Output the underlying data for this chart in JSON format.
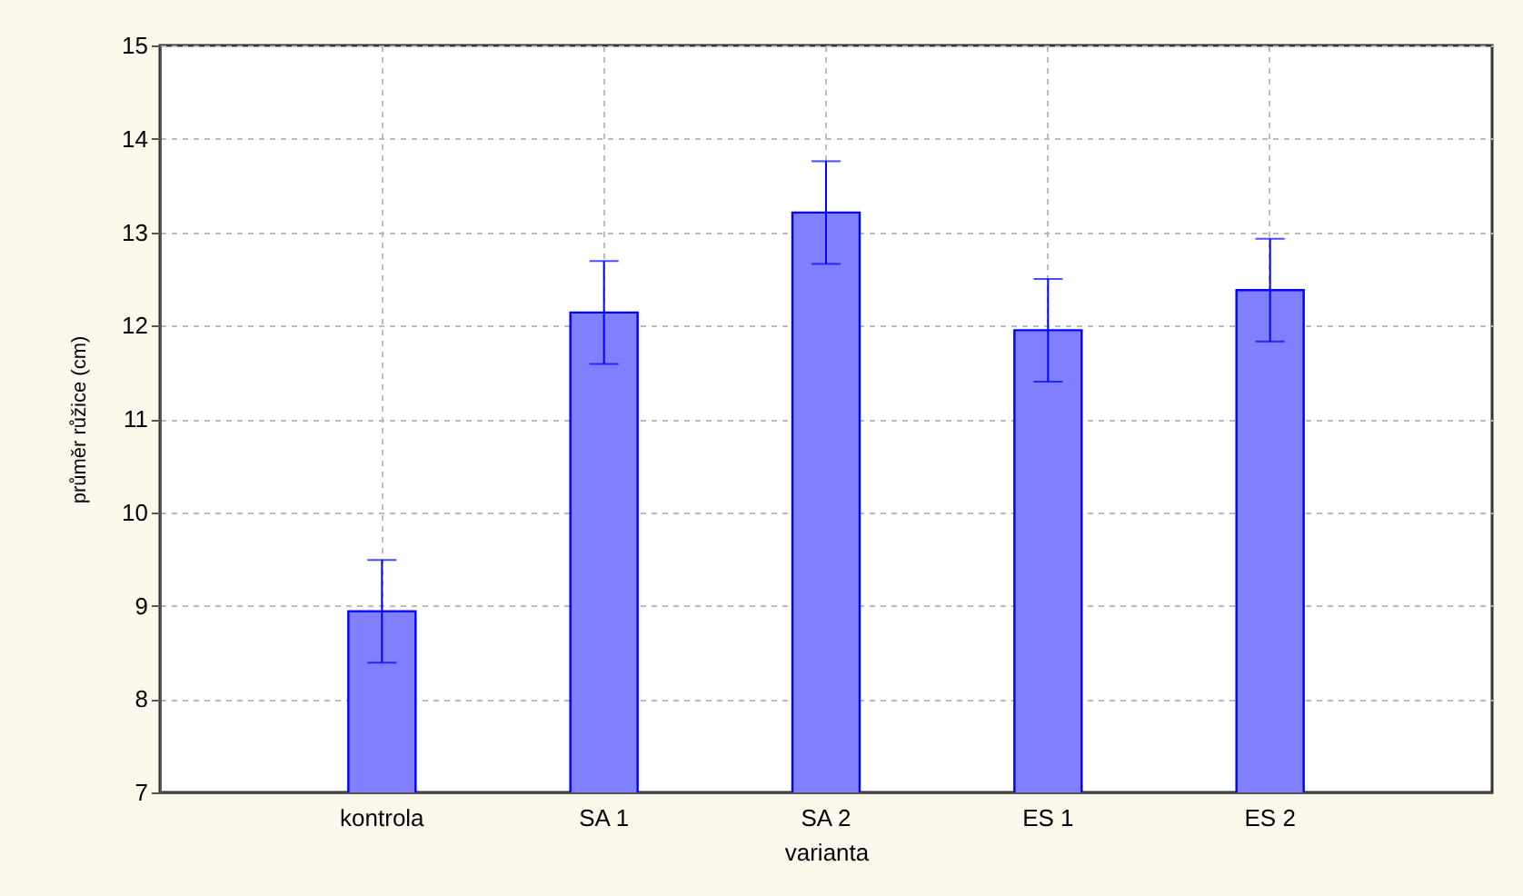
{
  "chart_data": {
    "type": "bar",
    "xlabel": "varianta",
    "ylabel": "průměr růžice (cm)",
    "categories": [
      "kontrola",
      "SA 1",
      "SA 2",
      "ES 1",
      "ES 2"
    ],
    "values": [
      8.94,
      12.14,
      13.21,
      11.95,
      12.38
    ],
    "errors": [
      0.55,
      0.55,
      0.55,
      0.55,
      0.55
    ],
    "color": "#8080ff",
    "ylim": [
      7,
      15
    ],
    "yticks": [
      7,
      8,
      9,
      10,
      11,
      12,
      13,
      14,
      15
    ],
    "grid": true
  }
}
